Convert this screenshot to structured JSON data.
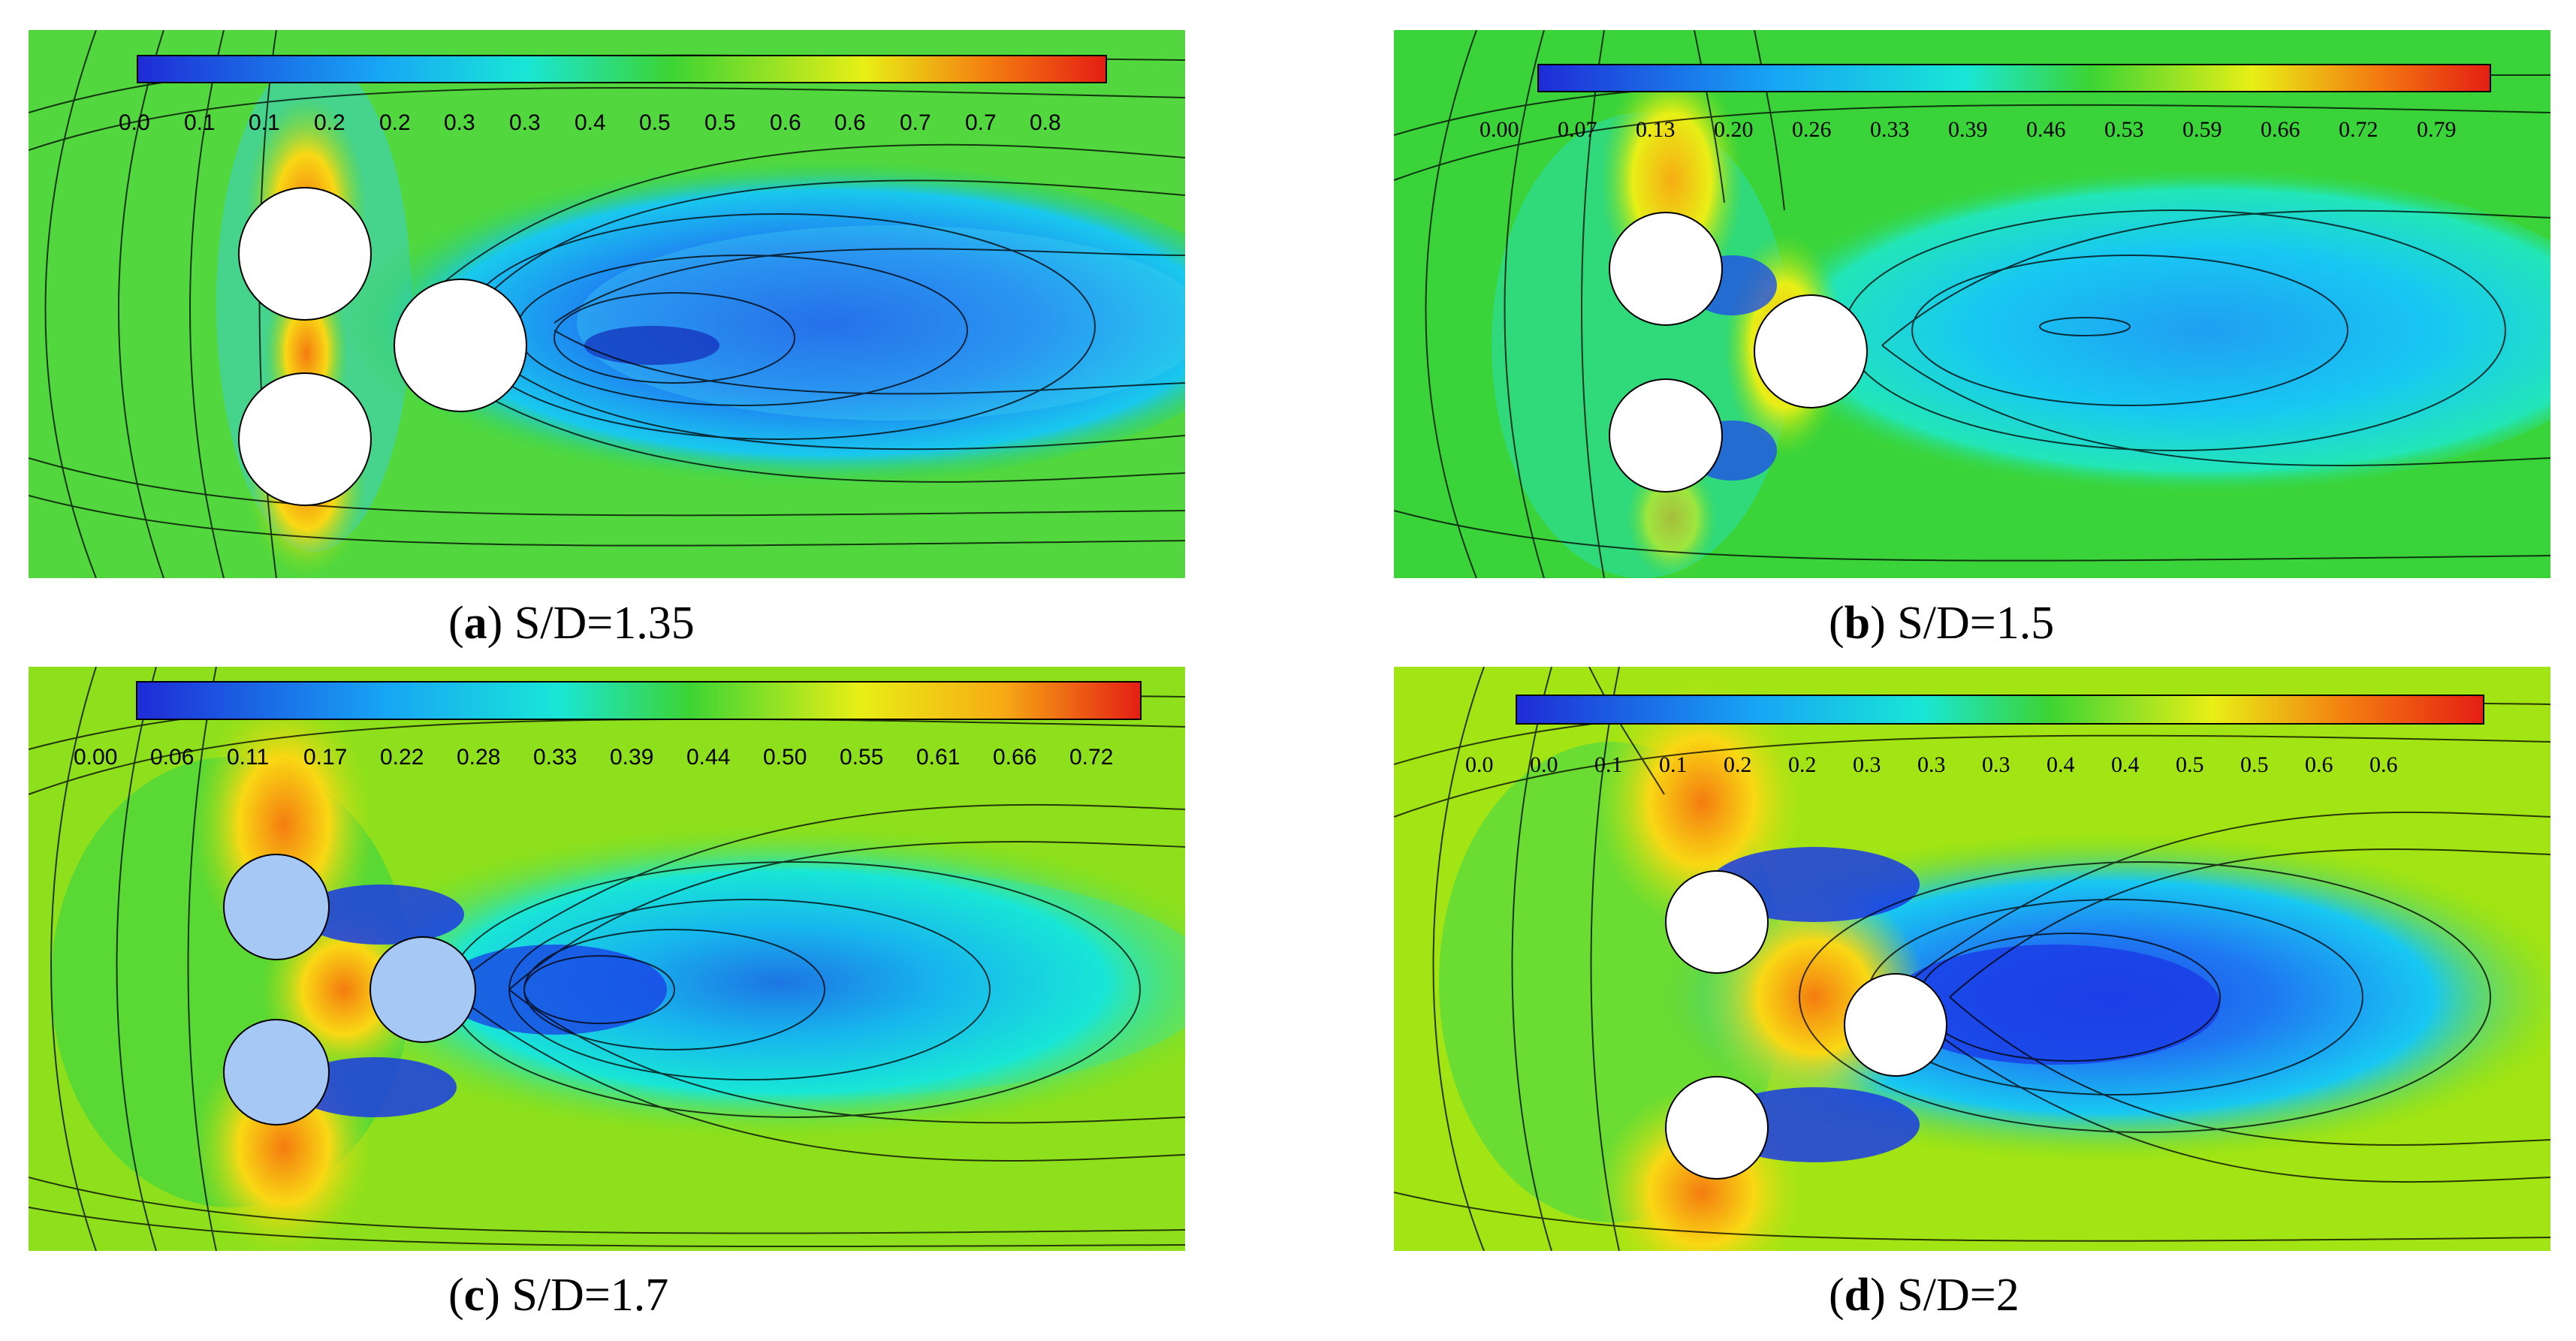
{
  "panels": [
    {
      "id": "a",
      "letter": "a",
      "caption": "S/D=1.35",
      "legend_ticks": [
        "0.0",
        "0.1",
        "0.1",
        "0.2",
        "0.2",
        "0.3",
        "0.3",
        "0.4",
        "0.5",
        "0.5",
        "0.6",
        "0.6",
        "0.7",
        "0.7",
        "0.8"
      ],
      "cylinder_color": "#ffffff"
    },
    {
      "id": "b",
      "letter": "b",
      "caption": "S/D=1.5",
      "legend_ticks": [
        "0.00",
        "0.07",
        "0.13",
        "0.20",
        "0.26",
        "0.33",
        "0.39",
        "0.46",
        "0.53",
        "0.59",
        "0.66",
        "0.72",
        "0.79"
      ],
      "cylinder_color": "#ffffff"
    },
    {
      "id": "c",
      "letter": "c",
      "caption": "S/D=1.7",
      "legend_ticks": [
        "0.00",
        "0.06",
        "0.11",
        "0.17",
        "0.22",
        "0.28",
        "0.33",
        "0.39",
        "0.44",
        "0.50",
        "0.55",
        "0.61",
        "0.66",
        "0.72"
      ],
      "cylinder_color": "#a6c8f4"
    },
    {
      "id": "d",
      "letter": "d",
      "caption": "S/D=2",
      "legend_ticks": [
        "0.0",
        "0.0",
        "0.1",
        "0.1",
        "0.2",
        "0.2",
        "0.3",
        "0.3",
        "0.3",
        "0.4",
        "0.4",
        "0.5",
        "0.5",
        "0.6",
        "0.6"
      ],
      "cylinder_color": "#ffffff"
    }
  ],
  "colormap": [
    "#1f2bd6",
    "#2350e8",
    "#1f78f2",
    "#17a6f5",
    "#10d0f0",
    "#19e6d6",
    "#23e6a8",
    "#2fdc6c",
    "#3cd434",
    "#73dc1c",
    "#b4e614",
    "#e8ef16",
    "#f9d814",
    "#f7ac14",
    "#f47c10",
    "#ee4b10",
    "#e41e14"
  ]
}
